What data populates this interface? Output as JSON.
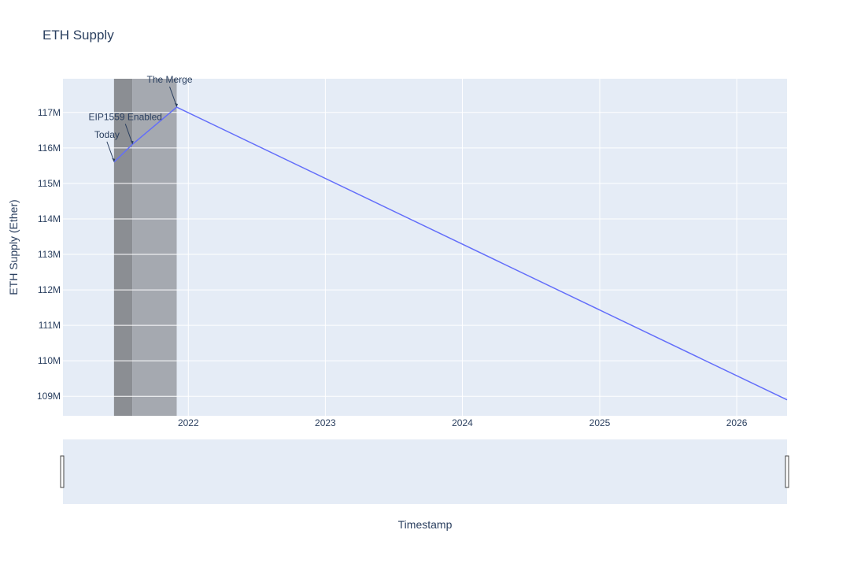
{
  "chart_data": {
    "type": "line",
    "title": "ETH Supply",
    "xlabel": "Timestamp",
    "ylabel": "ETH Supply (Ether)",
    "x_axis_type": "date",
    "xlim": [
      "2021-02-01",
      "2026-05-15"
    ],
    "ylim": [
      108450000,
      117950000
    ],
    "x_ticks": [
      "2022-01-01",
      "2023-01-01",
      "2024-01-01",
      "2025-01-01",
      "2026-01-01"
    ],
    "x_tick_labels": [
      "2022",
      "2023",
      "2024",
      "2025",
      "2026"
    ],
    "y_ticks": [
      109000000,
      110000000,
      111000000,
      112000000,
      113000000,
      114000000,
      115000000,
      116000000,
      117000000
    ],
    "y_tick_labels": [
      "109M",
      "110M",
      "111M",
      "112M",
      "113M",
      "114M",
      "115M",
      "116M",
      "117M"
    ],
    "grid": true,
    "series": [
      {
        "color": "#636efa",
        "x": [
          "2021-06-17",
          "2021-08-05",
          "2021-12-01",
          "2026-05-15"
        ],
        "y": [
          115600000,
          116100000,
          117150000,
          108900000
        ]
      }
    ],
    "shaded_regions": [
      {
        "x0": "2021-06-17",
        "x1": "2021-08-05",
        "color": "#8b8e93"
      },
      {
        "x0": "2021-08-05",
        "x1": "2021-12-01",
        "color": "#a5a9b0"
      }
    ],
    "annotations": [
      {
        "text": "Today",
        "x": "2021-06-17",
        "y": 115600000
      },
      {
        "text": "EIP1559 Enabled",
        "x": "2021-08-05",
        "y": 116100000
      },
      {
        "text": "The Merge",
        "x": "2021-12-01",
        "y": 117150000
      }
    ],
    "rangeslider": true
  }
}
